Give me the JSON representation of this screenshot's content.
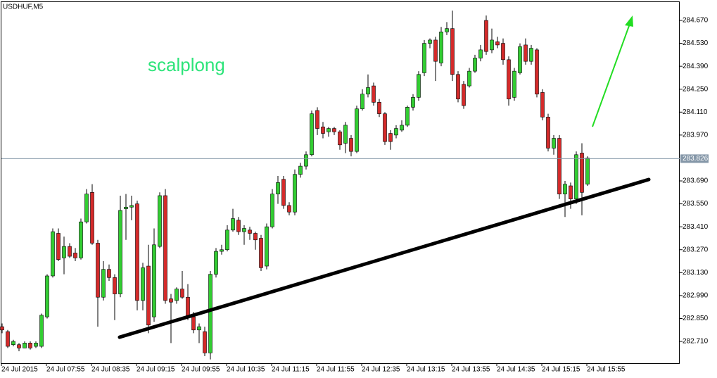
{
  "chart_data": {
    "type": "candlestick",
    "title": "USDHUF,M5",
    "annotation": "scalplong",
    "categories": [
      "24 Jul 2015",
      null,
      null,
      null,
      null,
      null,
      null,
      null,
      "24 Jul 07:55",
      null,
      null,
      null,
      null,
      null,
      null,
      null,
      "24 Jul 08:35",
      null,
      null,
      null,
      null,
      null,
      null,
      null,
      "24 Jul 09:15",
      null,
      null,
      null,
      null,
      null,
      null,
      null,
      "24 Jul 09:55",
      null,
      null,
      null,
      null,
      null,
      null,
      null,
      "24 Jul 10:35",
      null,
      null,
      null,
      null,
      null,
      null,
      null,
      "24 Jul 11:15",
      null,
      null,
      null,
      null,
      null,
      null,
      null,
      "24 Jul 11:55",
      null,
      null,
      null,
      null,
      null,
      null,
      null,
      "24 Jul 12:35",
      null,
      null,
      null,
      null,
      null,
      null,
      null,
      "24 Jul 13:15",
      null,
      null,
      null,
      null,
      null,
      null,
      null,
      "24 Jul 13:55",
      null,
      null,
      null,
      null,
      null,
      null,
      null,
      "24 Jul 14:35",
      null,
      null,
      null,
      null,
      null,
      null,
      null,
      "24 Jul 15:15",
      null,
      null,
      null,
      null,
      null,
      null,
      null,
      "24 Jul 15:55"
    ],
    "open": [
      282.8,
      282.77,
      282.69,
      282.69,
      282.67,
      282.7,
      282.68,
      282.68,
      282.86,
      283.11,
      283.37,
      283.22,
      283.29,
      283.25,
      283.22,
      283.44,
      283.62,
      283.31,
      282.98,
      283.15,
      283.1,
      283.0,
      283.52,
      283.53,
      283.55,
      282.96,
      283.17,
      282.86,
      283.29,
      283.6,
      282.97,
      282.96,
      283.03,
      282.98,
      282.86,
      282.78,
      282.77,
      282.64,
      283.12,
      283.26,
      283.27,
      283.39,
      283.45,
      283.38,
      283.39,
      283.37,
      283.34,
      283.17,
      283.41,
      283.61,
      283.7,
      283.54,
      283.5,
      283.73,
      283.78,
      283.85,
      284.12,
      284.02,
      283.99,
      284.01,
      283.99,
      283.92,
      283.95,
      283.87,
      284.13,
      284.22,
      284.27,
      284.17,
      284.1,
      283.98,
      283.97,
      284.0,
      284.03,
      284.14,
      284.2,
      284.35,
      284.53,
      284.55,
      284.41,
      284.6,
      284.62,
      284.34,
      284.28,
      284.27,
      284.36,
      284.44,
      284.67,
      284.49,
      284.54,
      284.53,
      284.43,
      284.2,
      284.35,
      284.52,
      284.42,
      284.49,
      284.23,
      284.08,
      283.89,
      283.95,
      283.61,
      283.66,
      283.58,
      283.86,
      283.67
    ],
    "high": [
      282.82,
      282.78,
      282.72,
      282.7,
      282.71,
      282.71,
      282.71,
      282.88,
      283.12,
      283.4,
      283.4,
      283.35,
      283.31,
      283.28,
      283.46,
      283.64,
      283.67,
      283.33,
      283.2,
      283.18,
      283.12,
      283.6,
      283.61,
      283.6,
      283.57,
      283.19,
      283.3,
      283.4,
      283.62,
      283.64,
      283.0,
      283.04,
      283.14,
      283.06,
      282.89,
      282.82,
      282.8,
      283.14,
      283.28,
      283.3,
      283.42,
      283.52,
      283.47,
      283.42,
      283.41,
      283.38,
      283.36,
      283.43,
      283.64,
      283.72,
      283.72,
      283.56,
      283.76,
      283.8,
      283.87,
      284.12,
      284.14,
      284.05,
      284.02,
      284.02,
      284.0,
      284.05,
      283.97,
      284.15,
      284.25,
      284.34,
      284.29,
      284.19,
      284.11,
      284.0,
      284.03,
      284.06,
      284.15,
      284.22,
      284.36,
      284.55,
      284.56,
      284.57,
      284.63,
      284.66,
      284.73,
      284.36,
      284.3,
      284.38,
      284.46,
      284.52,
      284.7,
      284.62,
      284.57,
      284.56,
      284.45,
      284.38,
      284.53,
      284.56,
      284.52,
      284.5,
      284.25,
      284.1,
      283.97,
      283.97,
      283.69,
      283.68,
      283.87,
      283.92,
      283.84
    ],
    "low": [
      282.76,
      282.67,
      282.68,
      282.65,
      282.67,
      282.66,
      282.67,
      282.67,
      282.85,
      283.1,
      283.2,
      283.12,
      283.22,
      283.2,
      283.21,
      283.43,
      283.3,
      282.8,
      282.96,
      283.08,
      282.84,
      282.98,
      283.33,
      283.45,
      282.9,
      282.9,
      282.76,
      282.83,
      283.28,
      282.94,
      282.7,
      282.94,
      282.97,
      282.84,
      282.76,
      282.7,
      282.62,
      282.6,
      283.1,
      283.24,
      283.26,
      283.38,
      283.36,
      283.3,
      283.33,
      283.27,
      283.14,
      283.15,
      283.4,
      283.55,
      283.52,
      283.48,
      283.48,
      283.71,
      283.76,
      283.84,
      283.97,
      283.95,
      283.96,
      283.97,
      283.88,
      283.86,
      283.84,
      283.86,
      284.12,
      284.2,
      284.15,
      284.08,
      283.91,
      283.88,
      283.95,
      283.99,
      284.02,
      284.12,
      284.18,
      284.33,
      284.5,
      284.3,
      284.39,
      284.58,
      284.3,
      284.17,
      284.13,
      284.26,
      284.35,
      284.42,
      284.46,
      284.47,
      284.5,
      284.4,
      284.15,
      284.18,
      284.34,
      284.4,
      284.4,
      284.2,
      284.06,
      283.87,
      283.85,
      283.58,
      283.47,
      283.52,
      283.55,
      283.48,
      283.66
    ],
    "close": [
      282.78,
      282.68,
      282.71,
      282.67,
      282.7,
      282.67,
      282.7,
      282.87,
      283.11,
      283.38,
      283.21,
      283.29,
      283.23,
      283.22,
      283.44,
      283.61,
      283.31,
      282.98,
      283.15,
      283.1,
      283.0,
      283.51,
      283.53,
      283.54,
      282.96,
      283.16,
      282.81,
      283.3,
      283.6,
      282.96,
      282.95,
      283.03,
      282.98,
      282.86,
      282.78,
      282.8,
      282.64,
      283.12,
      283.26,
      283.27,
      283.39,
      283.46,
      283.38,
      283.4,
      283.37,
      283.33,
      283.16,
      283.41,
      283.61,
      283.68,
      283.54,
      283.5,
      283.73,
      283.78,
      283.85,
      284.1,
      284.01,
      283.98,
      284.01,
      283.99,
      283.91,
      284.03,
      283.87,
      284.13,
      284.22,
      284.26,
      284.17,
      284.1,
      283.93,
      283.93,
      284.01,
      284.03,
      284.14,
      284.2,
      284.34,
      284.53,
      284.55,
      284.42,
      284.6,
      284.62,
      284.34,
      284.19,
      284.15,
      284.36,
      284.44,
      284.49,
      284.48,
      284.55,
      284.52,
      284.43,
      284.19,
      284.36,
      284.51,
      284.42,
      284.5,
      284.22,
      284.08,
      283.89,
      283.95,
      283.61,
      283.67,
      283.58,
      283.85,
      283.62,
      283.83
    ],
    "up_color": "#32cd32",
    "down_color": "#d42a2a",
    "last_price": 283.826,
    "ylim": [
      282.577,
      284.786
    ],
    "yticks": [
      {
        "value": 284.67,
        "label": "284.670"
      },
      {
        "value": 284.53,
        "label": "284.530"
      },
      {
        "value": 284.39,
        "label": "284.390"
      },
      {
        "value": 284.25,
        "label": "284.250"
      },
      {
        "value": 284.11,
        "label": "284.110"
      },
      {
        "value": 283.97,
        "label": "283.970"
      },
      {
        "value": 283.69,
        "label": "283.690"
      },
      {
        "value": 283.55,
        "label": "283.550"
      },
      {
        "value": 283.41,
        "label": "283.410"
      },
      {
        "value": 283.27,
        "label": "283.270"
      },
      {
        "value": 283.13,
        "label": "283.130"
      },
      {
        "value": 282.99,
        "label": "282.990"
      },
      {
        "value": 282.85,
        "label": "282.850"
      },
      {
        "value": 282.71,
        "label": "282.710"
      }
    ]
  }
}
